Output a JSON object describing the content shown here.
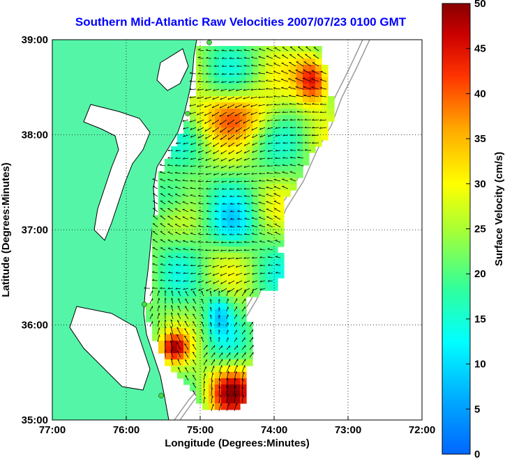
{
  "title": "Southern Mid-Atlantic Raw Velocities 2007/07/23 0100 GMT",
  "x_axis": {
    "label": "Longitude (Degrees:Minutes)",
    "ticks": [
      "77:00",
      "76:00",
      "75:00",
      "74:00",
      "73:00",
      "72:00"
    ]
  },
  "y_axis": {
    "label": "Latitude (Degrees:Minutes)",
    "ticks": [
      "39:00",
      "38:00",
      "37:00",
      "36:00",
      "35:00"
    ]
  },
  "colorbar": {
    "label": "Surface Velocity (cm/s)",
    "ticks": [
      "50",
      "45",
      "40",
      "35",
      "30",
      "25",
      "20",
      "15",
      "10",
      "5",
      "0"
    ],
    "min": 0,
    "max": 50,
    "colormap": "jet"
  },
  "chart_data": {
    "type": "heatmap",
    "title": "Southern Mid-Atlantic Raw Velocities 2007/07/23 0100 GMT",
    "xlabel": "Longitude (Degrees:Minutes)",
    "ylabel": "Latitude (Degrees:Minutes)",
    "xlim": [
      -77,
      -72
    ],
    "ylim": [
      35,
      39
    ],
    "colorbar_label": "Surface Velocity (cm/s)",
    "colorbar_range": [
      0,
      50
    ],
    "grid": true
  },
  "colors": {
    "land": "#55f5a8",
    "coast": "#000000",
    "grid": "#000000",
    "title": "#0000ff",
    "station": "#44dd44",
    "isobath": "#9a9a9a"
  }
}
